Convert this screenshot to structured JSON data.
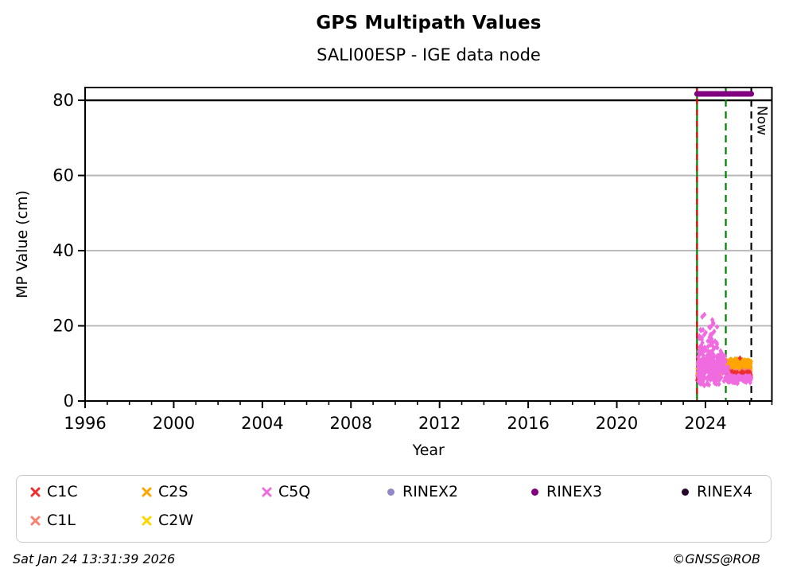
{
  "header": {
    "title": "GPS Multipath Values",
    "subtitle": "SALI00ESP - IGE data node"
  },
  "footer": {
    "timestamp": "Sat Jan 24 13:31:39 2026",
    "copyright": "©GNSS@ROB"
  },
  "legend": {
    "items": [
      {
        "label": "C1C",
        "color": "#ee2e2e",
        "marker": "x"
      },
      {
        "label": "C2S",
        "color": "#ffa500",
        "marker": "x"
      },
      {
        "label": "C5Q",
        "color": "#f06ae0",
        "marker": "x"
      },
      {
        "label": "RINEX2",
        "color": "#9186c8",
        "marker": "circle"
      },
      {
        "label": "RINEX3",
        "color": "#800080",
        "marker": "circle"
      },
      {
        "label": "RINEX4",
        "color": "#26062b",
        "marker": "circle"
      },
      {
        "label": "C1L",
        "color": "#fa8072",
        "marker": "x"
      },
      {
        "label": "C2W",
        "color": "#ffd700",
        "marker": "x"
      }
    ]
  },
  "chart_data": {
    "type": "scatter",
    "title": "GPS Multipath Values",
    "subtitle": "SALI00ESP - IGE data node",
    "xlabel": "Year",
    "ylabel": "MP Value (cm)",
    "xlim": [
      1996,
      2027
    ],
    "ylim": [
      0,
      83.4
    ],
    "x_major_ticks": [
      1996,
      2000,
      2004,
      2008,
      2012,
      2016,
      2020,
      2024
    ],
    "x_minor_tick_step": 1,
    "y_ticks": [
      0,
      20,
      40,
      60,
      80
    ],
    "gridlines_y": [
      20,
      40,
      60
    ],
    "grid_color": "#b3b3b3",
    "threshold_line_y": 80,
    "vlines": [
      {
        "name": "data-start",
        "x": 2023.62,
        "style": "solid",
        "color": "#008000",
        "overlay": {
          "style": "dashed",
          "color": "#dd0000"
        }
      },
      {
        "name": "latest-rinex",
        "x": 2024.92,
        "style": "dashed",
        "color": "#008000"
      },
      {
        "name": "now",
        "x": 2026.07,
        "style": "dashed",
        "color": "#000000",
        "label": "Now"
      }
    ],
    "rinex3_band": {
      "y": 81.7,
      "color": "#800080",
      "segments": [
        [
          2023.62,
          2024.6
        ],
        [
          2024.67,
          2026.07
        ]
      ]
    },
    "series": [
      {
        "name": "C2W",
        "color": "#ffd700",
        "marker": "diamond",
        "seed": 11,
        "clusters": [
          {
            "x": [
              2023.63,
              2024.9
            ],
            "n": 55,
            "y_mean": 9.2,
            "y_sd": 0.8,
            "y_clip": [
              7.4,
              11.0
            ]
          },
          {
            "x": [
              2024.96,
              2026.06
            ],
            "n": 175,
            "y_mean": 9.1,
            "y_sd": 0.62,
            "y_clip": [
              7.9,
              10.7
            ]
          }
        ]
      },
      {
        "name": "C2S",
        "color": "#ffa500",
        "marker": "diamond",
        "seed": 22,
        "clusters": [
          {
            "x": [
              2023.63,
              2024.9
            ],
            "n": 50,
            "y_mean": 8.7,
            "y_sd": 0.8,
            "y_clip": [
              7.0,
              10.6
            ]
          },
          {
            "x": [
              2024.96,
              2026.06
            ],
            "n": 130,
            "y_mean": 9.8,
            "y_sd": 0.6,
            "y_clip": [
              8.5,
              11.2
            ]
          }
        ],
        "points": [
          [
            2025.15,
            11.1
          ],
          [
            2025.55,
            11.3
          ],
          [
            2025.78,
            10.9
          ]
        ]
      },
      {
        "name": "C1L",
        "color": "#fa8072",
        "marker": "diamond",
        "seed": 33,
        "clusters": [
          {
            "x": [
              2023.63,
              2023.73
            ],
            "n": 10,
            "y_mean": 6.4,
            "y_sd": 0.5,
            "y_clip": [
              5.3,
              7.5
            ]
          },
          {
            "x": [
              2024.96,
              2026.06
            ],
            "n": 105,
            "y_mean": 7.4,
            "y_sd": 0.4,
            "y_clip": [
              6.5,
              8.4
            ]
          }
        ]
      },
      {
        "name": "C1C",
        "color": "#ee2e2e",
        "marker": "diamond",
        "seed": 44,
        "clusters": [
          {
            "x": [
              2023.63,
              2023.73
            ],
            "n": 10,
            "y_mean": 6.0,
            "y_sd": 0.5,
            "y_clip": [
              5.0,
              7.0
            ]
          },
          {
            "x": [
              2024.96,
              2026.06
            ],
            "n": 135,
            "y_mean": 7.0,
            "y_sd": 0.38,
            "y_clip": [
              6.1,
              8.0
            ]
          }
        ],
        "points": [
          [
            2025.56,
            11.4
          ]
        ]
      },
      {
        "name": "C5Q",
        "color": "#f06ae0",
        "marker": "diamond",
        "seed": 55,
        "clusters": [
          {
            "x": [
              2023.63,
              2024.92
            ],
            "n": 300,
            "y_mean": 9.0,
            "y_sd": 2.0,
            "y_clip": [
              4.5,
              14.5
            ]
          },
          {
            "x": [
              2023.72,
              2024.55
            ],
            "n": 55,
            "y_mean": 15.3,
            "y_sd": 3.0,
            "y_clip": [
              11.0,
              23.4
            ]
          },
          {
            "x": [
              2024.96,
              2026.06
            ],
            "n": 165,
            "y_mean": 5.9,
            "y_sd": 0.5,
            "y_clip": [
              4.7,
              7.1
            ]
          }
        ],
        "points": [
          [
            2024.97,
            8.9
          ],
          [
            2024.99,
            8.2
          ],
          [
            2025.02,
            9.1
          ],
          [
            2025.04,
            7.7
          ],
          [
            2023.95,
            4.1
          ],
          [
            2024.16,
            4.3
          ],
          [
            2024.5,
            4.5
          ]
        ]
      }
    ],
    "legend_position": "bottom",
    "grid": true
  }
}
